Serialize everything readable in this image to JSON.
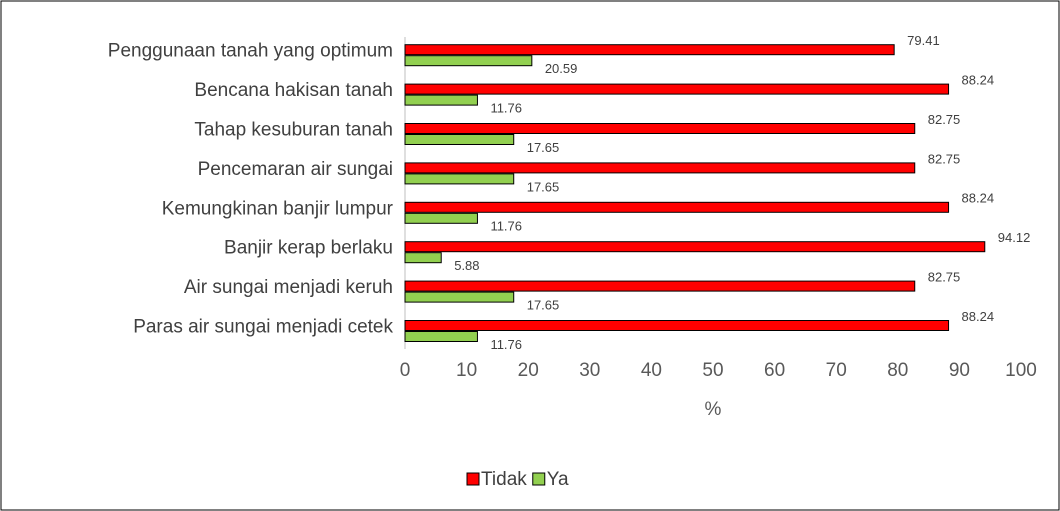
{
  "chart_data": {
    "type": "bar",
    "orientation": "horizontal",
    "categories": [
      "Penggunaan tanah yang optimum",
      "Bencana hakisan tanah",
      "Tahap kesuburan tanah",
      "Pencemaran air sungai",
      "Kemungkinan banjir lumpur",
      "Banjir kerap berlaku",
      "Air sungai menjadi keruh",
      "Paras air sungai menjadi cetek"
    ],
    "series": [
      {
        "name": "Tidak",
        "color": "#ff0000",
        "values": [
          79.41,
          88.24,
          82.75,
          82.75,
          88.24,
          94.12,
          82.75,
          88.24
        ]
      },
      {
        "name": "Ya",
        "color": "#92d050",
        "values": [
          20.59,
          11.76,
          17.65,
          17.65,
          11.76,
          5.88,
          17.65,
          11.76
        ]
      }
    ],
    "x_label": "%",
    "xlim": [
      0,
      100
    ],
    "xticks": [
      0,
      10,
      20,
      30,
      40,
      50,
      60,
      70,
      80,
      90,
      100
    ],
    "grid": false,
    "legend": "bottom"
  }
}
